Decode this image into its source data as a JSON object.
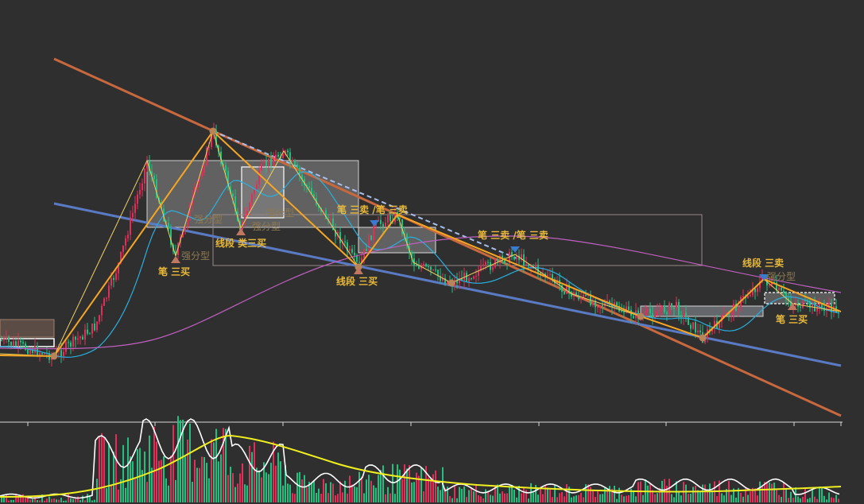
{
  "chart_data": {
    "type": "candlestick",
    "title": "",
    "xlabel": "",
    "ylabel": "",
    "grid": false,
    "colors": {
      "background": "#2f2f2f",
      "trend_upper": "#c8683e",
      "trend_lower": "#5a7bc4",
      "pivot_line": "#f5a623",
      "stroke_line": "#f0d060",
      "ma_short": "#28b0e0",
      "ma_long": "#c060c0",
      "up_candle": "#e0305a",
      "down_candle": "#20c080",
      "volume_ma_white": "#ffffff",
      "volume_ma_yellow": "#f0f020",
      "annotation": "#e8b93a",
      "annotation_dim": "#8e7a52",
      "buy_marker": "#c07860",
      "sell_marker": "#3a7ad0"
    },
    "annotations": [
      {
        "text": "笔 三买",
        "kind": "buy"
      },
      {
        "text": "强分型",
        "kind": "dim"
      },
      {
        "text": "强分型",
        "kind": "dim"
      },
      {
        "text": "线段 类三买",
        "kind": "buy"
      },
      {
        "text": "强分型",
        "kind": "dim"
      },
      {
        "text": "强分型",
        "kind": "dim"
      },
      {
        "text": "笔 三卖 /笔 三卖",
        "kind": "sell"
      },
      {
        "text": "线段 三买",
        "kind": "buy"
      },
      {
        "text": "笔 三卖 /笔 三卖",
        "kind": "sell"
      },
      {
        "text": "线段 三卖",
        "kind": "sell"
      },
      {
        "text": "强分型",
        "kind": "dim"
      },
      {
        "text": "笔 三买",
        "kind": "buy"
      }
    ]
  }
}
